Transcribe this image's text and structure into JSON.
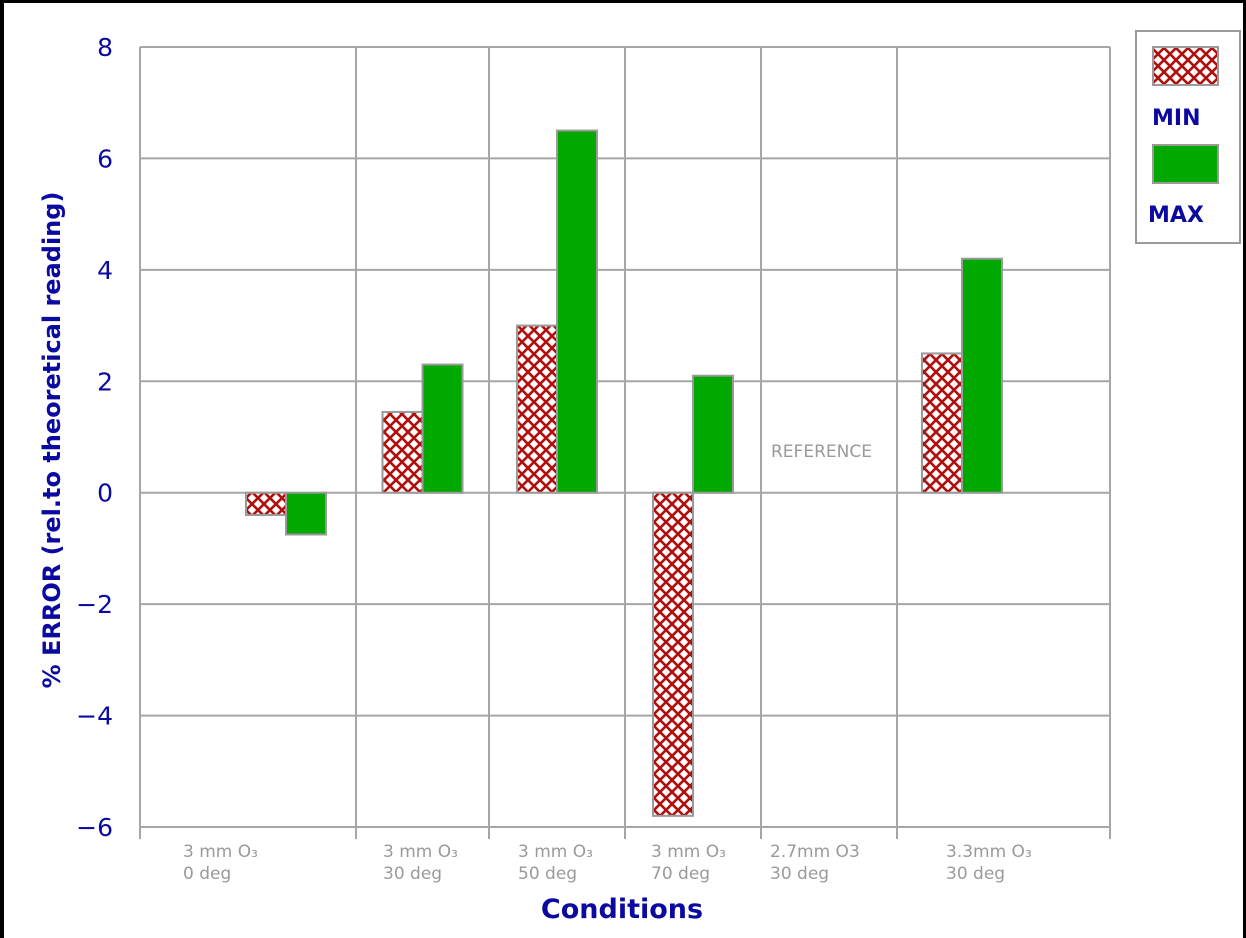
{
  "chart_data": {
    "type": "bar",
    "title": "",
    "xlabel": "Conditions",
    "ylabel": "% ERROR (rel.to theoretical reading)",
    "ylim": [
      -6,
      8
    ],
    "yticks": [
      "8",
      "6",
      "4",
      "2",
      "0",
      "−2",
      "−4",
      "−6"
    ],
    "categories": [
      {
        "line1": "3 mm O₃",
        "line2": "0 deg"
      },
      {
        "line1": "3 mm O₃",
        "line2": "30 deg"
      },
      {
        "line1": "3 mm O₃",
        "line2": "50 deg"
      },
      {
        "line1": "3 mm O₃",
        "line2": "70 deg"
      },
      {
        "line1": "2.7mm O3",
        "line2": "30 deg"
      },
      {
        "line1": "3.3mm O₃",
        "line2": "30 deg"
      }
    ],
    "series": [
      {
        "name": "MIN",
        "values": [
          -0.4,
          1.45,
          3.0,
          -5.8,
          null,
          2.5
        ],
        "color": "#b01010",
        "pattern": "crosshatch"
      },
      {
        "name": "MAX",
        "values": [
          -0.75,
          2.3,
          6.5,
          2.1,
          null,
          4.2
        ],
        "color": "#00a800"
      }
    ],
    "annotation": "REFERENCE",
    "grid": true,
    "legend_position": "top-right"
  }
}
